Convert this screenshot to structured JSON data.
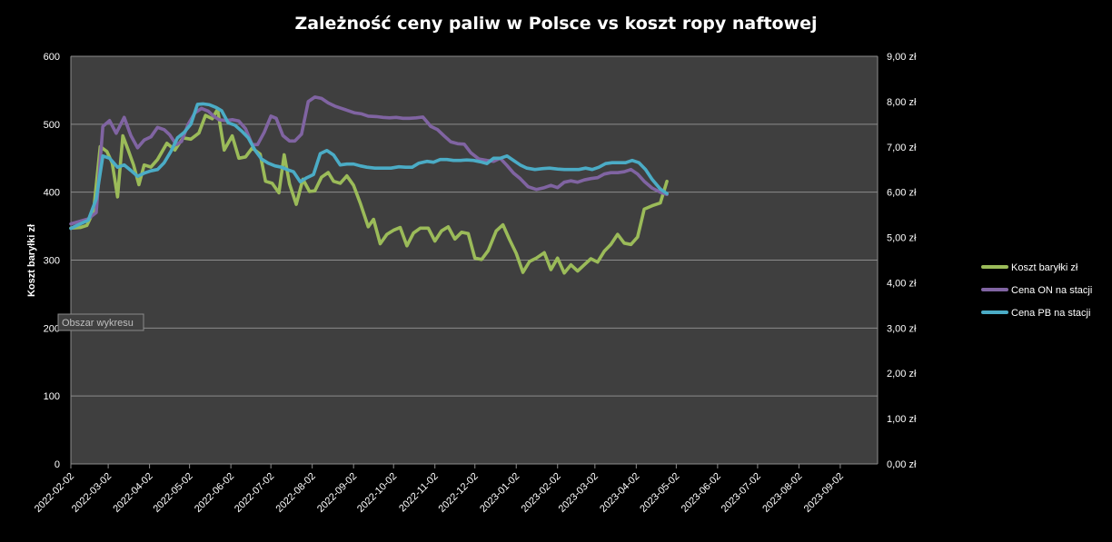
{
  "chart_data": {
    "type": "line",
    "title": "Zależność ceny paliw w Polsce vs koszt ropy naftowej",
    "y_left_label": "Koszt baryłki zł",
    "y_left_range": [
      0,
      600
    ],
    "y_left_ticks": [
      "0",
      "100",
      "200",
      "300",
      "400",
      "500",
      "600"
    ],
    "y_left_tick_values": [
      0,
      100,
      200,
      300,
      400,
      500,
      600
    ],
    "y_right_range": [
      0,
      9
    ],
    "y_right_ticks": [
      "0,00 zł",
      "1,00 zł",
      "2,00 zł",
      "3,00 zł",
      "4,00 zł",
      "5,00 zł",
      "6,00 zł",
      "7,00 zł",
      "8,00 zł",
      "9,00 zł"
    ],
    "y_right_tick_values": [
      0,
      1,
      2,
      3,
      4,
      5,
      6,
      7,
      8,
      9
    ],
    "x_range": [
      "2022-02-02",
      "2023-09-30"
    ],
    "x_ticks": [
      "2022-02-02",
      "2022-03-02",
      "2022-04-02",
      "2022-05-02",
      "2022-06-02",
      "2022-07-02",
      "2022-08-02",
      "2022-09-02",
      "2022-10-02",
      "2022-11-02",
      "2022-12-02",
      "2023-01-02",
      "2023-02-02",
      "2023-03-02",
      "2023-04-02",
      "2023-05-02",
      "2023-06-02",
      "2023-07-02",
      "2023-08-02",
      "2023-09-02"
    ],
    "grid": true,
    "legend_position": "right",
    "tooltip": "Obszar wykresu",
    "series": [
      {
        "name": "Koszt baryłki zł",
        "axis": "left",
        "color": "#9BBB59",
        "points": [
          [
            "2022-02-02",
            347
          ],
          [
            "2022-02-09",
            348
          ],
          [
            "2022-02-14",
            351
          ],
          [
            "2022-02-19",
            372
          ],
          [
            "2022-02-24",
            467
          ],
          [
            "2022-03-01",
            460
          ],
          [
            "2022-03-05",
            443
          ],
          [
            "2022-03-09",
            393
          ],
          [
            "2022-03-13",
            483
          ],
          [
            "2022-03-17",
            462
          ],
          [
            "2022-03-21",
            440
          ],
          [
            "2022-03-25",
            411
          ],
          [
            "2022-03-29",
            440
          ],
          [
            "2022-04-03",
            437
          ],
          [
            "2022-04-08",
            448
          ],
          [
            "2022-04-15",
            472
          ],
          [
            "2022-04-21",
            462
          ],
          [
            "2022-04-27",
            480
          ],
          [
            "2022-05-03",
            478
          ],
          [
            "2022-05-09",
            487
          ],
          [
            "2022-05-14",
            513
          ],
          [
            "2022-05-19",
            508
          ],
          [
            "2022-05-23",
            522
          ],
          [
            "2022-05-28",
            462
          ],
          [
            "2022-06-03",
            483
          ],
          [
            "2022-06-08",
            450
          ],
          [
            "2022-06-13",
            452
          ],
          [
            "2022-06-18",
            465
          ],
          [
            "2022-06-24",
            456
          ],
          [
            "2022-06-28",
            416
          ],
          [
            "2022-07-03",
            413
          ],
          [
            "2022-07-08",
            399
          ],
          [
            "2022-07-12",
            455
          ],
          [
            "2022-07-16",
            412
          ],
          [
            "2022-07-21",
            382
          ],
          [
            "2022-07-26",
            419
          ],
          [
            "2022-07-31",
            401
          ],
          [
            "2022-08-04",
            402
          ],
          [
            "2022-08-09",
            422
          ],
          [
            "2022-08-14",
            429
          ],
          [
            "2022-08-18",
            416
          ],
          [
            "2022-08-23",
            413
          ],
          [
            "2022-08-28",
            424
          ],
          [
            "2022-09-02",
            410
          ],
          [
            "2022-09-07",
            384
          ],
          [
            "2022-09-13",
            349
          ],
          [
            "2022-09-17",
            360
          ],
          [
            "2022-09-22",
            324
          ],
          [
            "2022-09-27",
            338
          ],
          [
            "2022-10-02",
            344
          ],
          [
            "2022-10-07",
            348
          ],
          [
            "2022-10-12",
            321
          ],
          [
            "2022-10-17",
            340
          ],
          [
            "2022-10-22",
            347
          ],
          [
            "2022-10-28",
            347
          ],
          [
            "2022-11-02",
            328
          ],
          [
            "2022-11-07",
            343
          ],
          [
            "2022-11-12",
            349
          ],
          [
            "2022-11-17",
            331
          ],
          [
            "2022-11-22",
            341
          ],
          [
            "2022-11-27",
            339
          ],
          [
            "2022-12-02",
            303
          ],
          [
            "2022-12-07",
            301
          ],
          [
            "2022-12-12",
            314
          ],
          [
            "2022-12-18",
            343
          ],
          [
            "2022-12-23",
            352
          ],
          [
            "2022-12-28",
            330
          ],
          [
            "2023-01-02",
            310
          ],
          [
            "2023-01-07",
            282
          ],
          [
            "2023-01-12",
            298
          ],
          [
            "2023-01-17",
            303
          ],
          [
            "2023-01-23",
            311
          ],
          [
            "2023-01-28",
            286
          ],
          [
            "2023-02-02",
            303
          ],
          [
            "2023-02-07",
            281
          ],
          [
            "2023-02-12",
            293
          ],
          [
            "2023-02-17",
            284
          ],
          [
            "2023-02-22",
            293
          ],
          [
            "2023-02-27",
            302
          ],
          [
            "2023-03-04",
            297
          ],
          [
            "2023-03-09",
            313
          ],
          [
            "2023-03-14",
            323
          ],
          [
            "2023-03-19",
            338
          ],
          [
            "2023-03-24",
            325
          ],
          [
            "2023-03-29",
            323
          ],
          [
            "2023-04-03",
            334
          ],
          [
            "2023-04-08",
            375
          ],
          [
            "2023-04-14",
            380
          ],
          [
            "2023-04-20",
            384
          ],
          [
            "2023-04-25",
            416
          ]
        ]
      },
      {
        "name": "Cena ON na stacji",
        "axis": "right",
        "color": "#8064A2",
        "points": [
          [
            "2022-02-02",
            5.3
          ],
          [
            "2022-02-15",
            5.41
          ],
          [
            "2022-02-21",
            5.55
          ],
          [
            "2022-02-26",
            7.45
          ],
          [
            "2022-03-03",
            7.58
          ],
          [
            "2022-03-08",
            7.3
          ],
          [
            "2022-03-14",
            7.65
          ],
          [
            "2022-03-19",
            7.25
          ],
          [
            "2022-03-24",
            6.98
          ],
          [
            "2022-03-29",
            7.15
          ],
          [
            "2022-04-03",
            7.22
          ],
          [
            "2022-04-08",
            7.43
          ],
          [
            "2022-04-13",
            7.38
          ],
          [
            "2022-04-17",
            7.27
          ],
          [
            "2022-04-22",
            7.05
          ],
          [
            "2022-04-26",
            7.12
          ],
          [
            "2022-05-01",
            7.5
          ],
          [
            "2022-05-06",
            7.75
          ],
          [
            "2022-05-11",
            7.85
          ],
          [
            "2022-05-16",
            7.79
          ],
          [
            "2022-05-20",
            7.68
          ],
          [
            "2022-05-24",
            7.6
          ],
          [
            "2022-05-29",
            7.58
          ],
          [
            "2022-06-03",
            7.6
          ],
          [
            "2022-06-08",
            7.57
          ],
          [
            "2022-06-13",
            7.4
          ],
          [
            "2022-06-18",
            7.05
          ],
          [
            "2022-06-22",
            7.05
          ],
          [
            "2022-06-27",
            7.32
          ],
          [
            "2022-07-02",
            7.68
          ],
          [
            "2022-07-06",
            7.63
          ],
          [
            "2022-07-11",
            7.25
          ],
          [
            "2022-07-16",
            7.13
          ],
          [
            "2022-07-20",
            7.13
          ],
          [
            "2022-07-25",
            7.28
          ],
          [
            "2022-07-30",
            8.0
          ],
          [
            "2022-08-04",
            8.1
          ],
          [
            "2022-08-09",
            8.07
          ],
          [
            "2022-08-14",
            7.97
          ],
          [
            "2022-08-19",
            7.9
          ],
          [
            "2022-08-24",
            7.85
          ],
          [
            "2022-08-29",
            7.8
          ],
          [
            "2022-09-03",
            7.75
          ],
          [
            "2022-09-08",
            7.73
          ],
          [
            "2022-09-13",
            7.68
          ],
          [
            "2022-09-19",
            7.67
          ],
          [
            "2022-09-24",
            7.65
          ],
          [
            "2022-09-29",
            7.64
          ],
          [
            "2022-10-04",
            7.65
          ],
          [
            "2022-10-09",
            7.63
          ],
          [
            "2022-10-14",
            7.63
          ],
          [
            "2022-10-19",
            7.64
          ],
          [
            "2022-10-24",
            7.66
          ],
          [
            "2022-10-30",
            7.45
          ],
          [
            "2022-11-04",
            7.38
          ],
          [
            "2022-11-09",
            7.24
          ],
          [
            "2022-11-14",
            7.11
          ],
          [
            "2022-11-19",
            7.07
          ],
          [
            "2022-11-24",
            7.06
          ],
          [
            "2022-11-29",
            6.87
          ],
          [
            "2022-12-05",
            6.73
          ],
          [
            "2022-12-11",
            6.7
          ],
          [
            "2022-12-16",
            6.68
          ],
          [
            "2022-12-21",
            6.75
          ],
          [
            "2022-12-26",
            6.59
          ],
          [
            "2022-12-31",
            6.42
          ],
          [
            "2023-01-05",
            6.3
          ],
          [
            "2023-01-11",
            6.12
          ],
          [
            "2023-01-17",
            6.06
          ],
          [
            "2023-01-23",
            6.1
          ],
          [
            "2023-01-28",
            6.15
          ],
          [
            "2023-02-02",
            6.1
          ],
          [
            "2023-02-07",
            6.22
          ],
          [
            "2023-02-12",
            6.25
          ],
          [
            "2023-02-17",
            6.22
          ],
          [
            "2023-02-22",
            6.27
          ],
          [
            "2023-02-27",
            6.3
          ],
          [
            "2023-03-04",
            6.32
          ],
          [
            "2023-03-09",
            6.4
          ],
          [
            "2023-03-14",
            6.43
          ],
          [
            "2023-03-19",
            6.43
          ],
          [
            "2023-03-24",
            6.45
          ],
          [
            "2023-03-29",
            6.5
          ],
          [
            "2023-04-03",
            6.4
          ],
          [
            "2023-04-08",
            6.24
          ],
          [
            "2023-04-14",
            6.09
          ],
          [
            "2023-04-20",
            6.0
          ],
          [
            "2023-04-25",
            5.95
          ]
        ]
      },
      {
        "name": "Cena PB na stacji",
        "axis": "right",
        "color": "#4BACC6",
        "points": [
          [
            "2022-02-02",
            5.2
          ],
          [
            "2022-02-09",
            5.3
          ],
          [
            "2022-02-15",
            5.38
          ],
          [
            "2022-02-21",
            5.85
          ],
          [
            "2022-02-26",
            6.8
          ],
          [
            "2022-03-03",
            6.75
          ],
          [
            "2022-03-09",
            6.55
          ],
          [
            "2022-03-14",
            6.6
          ],
          [
            "2022-03-19",
            6.48
          ],
          [
            "2022-03-24",
            6.35
          ],
          [
            "2022-03-29",
            6.42
          ],
          [
            "2022-04-03",
            6.47
          ],
          [
            "2022-04-08",
            6.5
          ],
          [
            "2022-04-13",
            6.65
          ],
          [
            "2022-04-18",
            6.9
          ],
          [
            "2022-04-23",
            7.2
          ],
          [
            "2022-04-28",
            7.32
          ],
          [
            "2022-05-03",
            7.5
          ],
          [
            "2022-05-08",
            7.94
          ],
          [
            "2022-05-12",
            7.95
          ],
          [
            "2022-05-17",
            7.93
          ],
          [
            "2022-05-22",
            7.87
          ],
          [
            "2022-05-26",
            7.8
          ],
          [
            "2022-05-31",
            7.53
          ],
          [
            "2022-06-05",
            7.48
          ],
          [
            "2022-06-10",
            7.35
          ],
          [
            "2022-06-15",
            7.2
          ],
          [
            "2022-06-20",
            6.93
          ],
          [
            "2022-06-25",
            6.73
          ],
          [
            "2022-06-30",
            6.64
          ],
          [
            "2022-07-05",
            6.58
          ],
          [
            "2022-07-10",
            6.55
          ],
          [
            "2022-07-14",
            6.5
          ],
          [
            "2022-07-19",
            6.45
          ],
          [
            "2022-07-24",
            6.23
          ],
          [
            "2022-07-29",
            6.32
          ],
          [
            "2022-08-03",
            6.39
          ],
          [
            "2022-08-08",
            6.85
          ],
          [
            "2022-08-13",
            6.92
          ],
          [
            "2022-08-18",
            6.82
          ],
          [
            "2022-08-23",
            6.6
          ],
          [
            "2022-08-28",
            6.62
          ],
          [
            "2022-09-02",
            6.62
          ],
          [
            "2022-09-07",
            6.58
          ],
          [
            "2022-09-12",
            6.55
          ],
          [
            "2022-09-18",
            6.53
          ],
          [
            "2022-09-24",
            6.53
          ],
          [
            "2022-09-30",
            6.53
          ],
          [
            "2022-10-06",
            6.56
          ],
          [
            "2022-10-11",
            6.55
          ],
          [
            "2022-10-16",
            6.55
          ],
          [
            "2022-10-21",
            6.64
          ],
          [
            "2022-10-27",
            6.68
          ],
          [
            "2022-11-01",
            6.66
          ],
          [
            "2022-11-06",
            6.72
          ],
          [
            "2022-11-11",
            6.72
          ],
          [
            "2022-11-16",
            6.7
          ],
          [
            "2022-11-21",
            6.7
          ],
          [
            "2022-11-26",
            6.71
          ],
          [
            "2022-12-01",
            6.7
          ],
          [
            "2022-12-06",
            6.67
          ],
          [
            "2022-12-11",
            6.63
          ],
          [
            "2022-12-16",
            6.75
          ],
          [
            "2022-12-21",
            6.75
          ],
          [
            "2022-12-26",
            6.8
          ],
          [
            "2022-12-31",
            6.7
          ],
          [
            "2023-01-05",
            6.6
          ],
          [
            "2023-01-10",
            6.53
          ],
          [
            "2023-01-16",
            6.5
          ],
          [
            "2023-01-22",
            6.52
          ],
          [
            "2023-01-27",
            6.53
          ],
          [
            "2023-02-02",
            6.51
          ],
          [
            "2023-02-07",
            6.5
          ],
          [
            "2023-02-13",
            6.5
          ],
          [
            "2023-02-18",
            6.5
          ],
          [
            "2023-02-23",
            6.53
          ],
          [
            "2023-02-28",
            6.5
          ],
          [
            "2023-03-05",
            6.55
          ],
          [
            "2023-03-10",
            6.63
          ],
          [
            "2023-03-15",
            6.65
          ],
          [
            "2023-03-20",
            6.65
          ],
          [
            "2023-03-25",
            6.65
          ],
          [
            "2023-03-30",
            6.7
          ],
          [
            "2023-04-04",
            6.65
          ],
          [
            "2023-04-09",
            6.5
          ],
          [
            "2023-04-14",
            6.28
          ],
          [
            "2023-04-20",
            6.07
          ],
          [
            "2023-04-25",
            5.97
          ]
        ]
      }
    ]
  }
}
